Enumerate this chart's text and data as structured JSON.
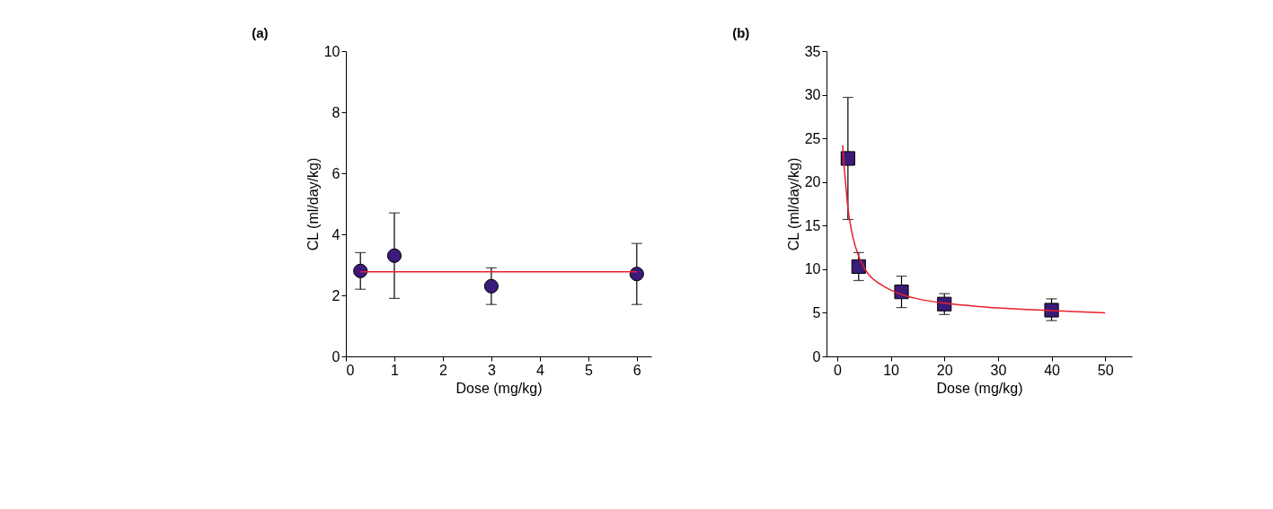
{
  "chart_data": [
    {
      "type": "scatter",
      "title": "(a)",
      "xlabel": "Dose (mg/kg)",
      "ylabel": "CL (ml/day/kg)",
      "xlim": [
        0,
        6.3
      ],
      "xticks": [
        0,
        1,
        2,
        3,
        4,
        5,
        6
      ],
      "ylim": [
        0,
        10
      ],
      "yticks": [
        0,
        2,
        4,
        6,
        8,
        10
      ],
      "grid": false,
      "series": [
        {
          "marker": "circle",
          "color": "#3b1a7a",
          "x": [
            0.3,
            1,
            3,
            6
          ],
          "values": [
            2.8,
            3.3,
            2.3,
            2.7
          ],
          "errors": [
            [
              2.2,
              3.4
            ],
            [
              1.9,
              4.7
            ],
            [
              1.7,
              2.9
            ],
            [
              1.7,
              3.7
            ]
          ]
        },
        {
          "type": "line",
          "color": "#e8202a",
          "x": [
            0.3,
            6
          ],
          "values": [
            2.77,
            2.77
          ]
        }
      ]
    },
    {
      "type": "scatter",
      "title": "(b)",
      "xlabel": "Dose (mg/kg)",
      "ylabel": "CL (ml/day/kg)",
      "xlim": [
        -2,
        55
      ],
      "xticks": [
        0,
        10,
        20,
        30,
        40,
        50
      ],
      "ylim": [
        0,
        35
      ],
      "yticks": [
        0,
        5,
        10,
        15,
        20,
        25,
        30,
        35
      ],
      "grid": false,
      "series": [
        {
          "marker": "square",
          "color": "#3b1a7a",
          "x": [
            2,
            4,
            12,
            20,
            40
          ],
          "values": [
            22.7,
            10.3,
            7.4,
            6.0,
            5.3
          ],
          "errors": [
            [
              15.7,
              29.7
            ],
            [
              8.7,
              11.9
            ],
            [
              5.6,
              9.2
            ],
            [
              4.8,
              7.2
            ],
            [
              4.1,
              6.6
            ]
          ]
        },
        {
          "type": "line",
          "color": "#e8202a",
          "x": [
            1,
            2,
            3,
            4,
            5,
            6,
            8,
            10,
            12,
            15,
            20,
            25,
            30,
            40,
            50
          ],
          "values": [
            24.2,
            17,
            13.5,
            11.5,
            10.2,
            9.3,
            8.3,
            7.6,
            7.1,
            6.6,
            6.1,
            5.8,
            5.55,
            5.25,
            5.0
          ]
        }
      ]
    }
  ]
}
